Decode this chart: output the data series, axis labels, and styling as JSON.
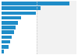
{
  "values": [
    20000,
    11500,
    10000,
    5800,
    4800,
    4200,
    3600,
    3000,
    2500,
    2000,
    800
  ],
  "bar_color": "#1f8dc8",
  "background_color": "#ffffff",
  "plot_bg_color": "#f2f2f2",
  "grid_color": "#cccccc",
  "xlim": [
    0,
    22000
  ],
  "figsize": [
    1.0,
    0.71
  ],
  "dpi": 100,
  "bar_height": 0.72
}
